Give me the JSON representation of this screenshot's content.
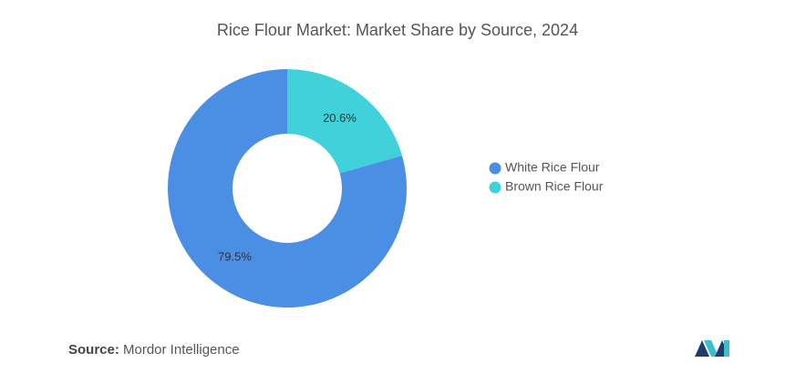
{
  "chart_data": {
    "type": "pie",
    "title": "Rice Flour Market: Market Share by Source, 2024",
    "categories": [
      "White Rice Flour",
      "Brown Rice Flour"
    ],
    "values": [
      79.5,
      20.6
    ],
    "value_labels": [
      "79.5%",
      "20.6%"
    ],
    "colors": [
      "#4a8fe3",
      "#41d1db"
    ],
    "hole": true,
    "legend": "right"
  },
  "footer": {
    "source_label": "Source:",
    "source": "Mordor Intelligence"
  }
}
